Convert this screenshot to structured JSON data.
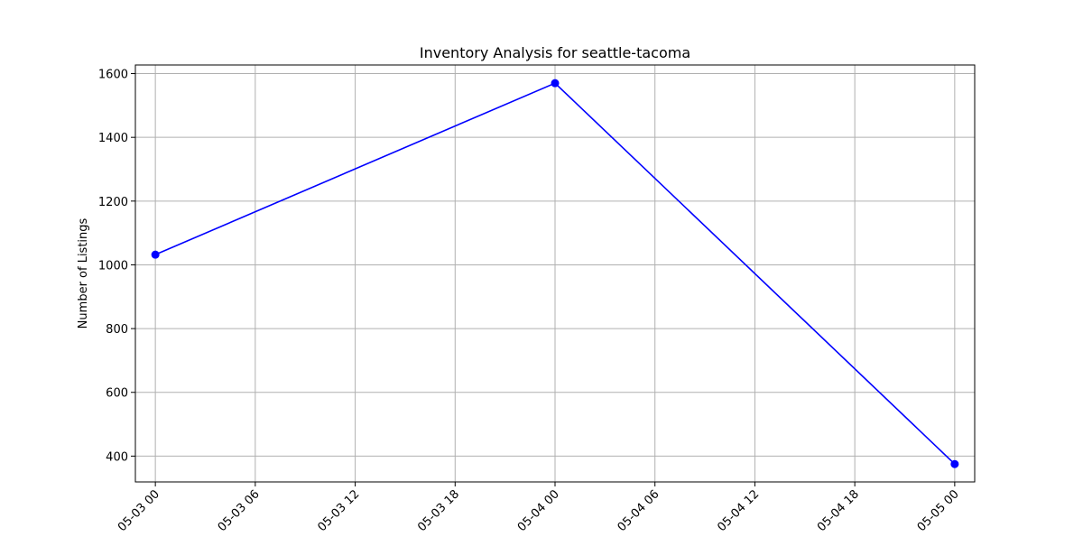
{
  "chart_data": {
    "type": "line",
    "title": "Inventory Analysis for seattle-tacoma",
    "xlabel": "",
    "ylabel": "Number of Listings",
    "x_ticks": [
      "05-03 00",
      "05-03 06",
      "05-03 12",
      "05-03 18",
      "05-04 00",
      "05-04 06",
      "05-04 12",
      "05-04 18",
      "05-05 00"
    ],
    "x_tick_hours": [
      0,
      6,
      12,
      18,
      24,
      30,
      36,
      42,
      48
    ],
    "xlim_hours": [
      -1.2,
      49.2
    ],
    "y_ticks": [
      400,
      600,
      800,
      1000,
      1200,
      1400,
      1600
    ],
    "ylim": [
      319,
      1627
    ],
    "grid": true,
    "series": [
      {
        "color": "#0000ff",
        "marker": "circle",
        "points": [
          {
            "x": "05-03 00",
            "hour": 0,
            "y": 1032
          },
          {
            "x": "05-04 00",
            "hour": 24,
            "y": 1570
          },
          {
            "x": "05-05 00",
            "hour": 48,
            "y": 375
          }
        ]
      }
    ]
  }
}
